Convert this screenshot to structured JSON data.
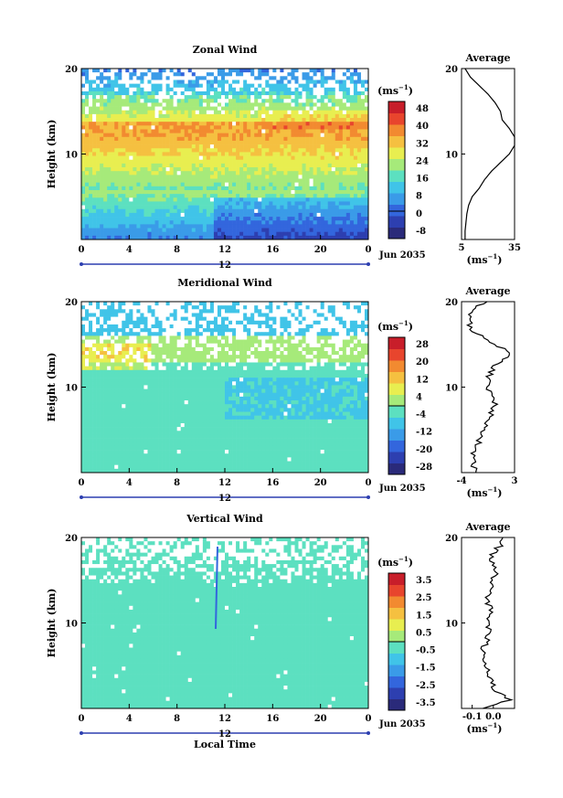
{
  "date_label": "Jun 2035",
  "x_label": "Local Time",
  "x_ticks": [
    "0",
    "4",
    "8",
    "12",
    "16",
    "20",
    "0"
  ],
  "y_ticks": [
    "20",
    "10"
  ],
  "unit": "(ms",
  "unit_exp": "−1",
  "avg_title": "Average",
  "colors": [
    "#2a2a7a",
    "#2d3fb0",
    "#3366dd",
    "#3a9be8",
    "#40c4e8",
    "#5ce0c0",
    "#a6ea7a",
    "#e8ee50",
    "#f5c040",
    "#f28a30",
    "#e8452d",
    "#c81e2a"
  ],
  "chart_data": [
    {
      "type": "heatmap",
      "title": "Zonal Wind",
      "xlabel": "",
      "ylabel": "Height (km)",
      "xlim": [
        0,
        24
      ],
      "ylim": [
        0,
        20
      ],
      "colorbar_ticks": [
        "48",
        "40",
        "32",
        "24",
        "16",
        "8",
        "0",
        "-8"
      ],
      "profile": {
        "title": "Average",
        "xticks": [
          "5",
          "35"
        ],
        "xlim": [
          5,
          35
        ],
        "heights": [
          0,
          1,
          2,
          3,
          4,
          5,
          6,
          7,
          8,
          9,
          10,
          11,
          12,
          13,
          14,
          15,
          16,
          17,
          18,
          19,
          20
        ],
        "values": [
          7,
          7,
          7.5,
          8,
          9,
          11,
          15,
          18,
          22,
          27,
          32,
          35,
          35,
          32,
          28,
          27,
          24,
          20,
          15,
          10,
          7
        ]
      }
    },
    {
      "type": "heatmap",
      "title": "Meridional Wind",
      "xlabel": "",
      "ylabel": "Height (km)",
      "xlim": [
        0,
        24
      ],
      "ylim": [
        0,
        20
      ],
      "colorbar_ticks": [
        "28",
        "20",
        "12",
        "4",
        "-4",
        "-12",
        "-20",
        "-28"
      ],
      "profile": {
        "title": "Average",
        "xticks": [
          "-4",
          "3"
        ],
        "xlim": [
          -4,
          3
        ],
        "heights": [
          0,
          1,
          2,
          3,
          4,
          5,
          6,
          7,
          8,
          9,
          10,
          11,
          12,
          13,
          14,
          15,
          16,
          17,
          18,
          19,
          20
        ],
        "values": [
          -2,
          -2.5,
          -2.5,
          -2,
          -1.5,
          -1,
          -0.5,
          0,
          0.5,
          0,
          -0.5,
          -0.5,
          0,
          1,
          2.5,
          0.5,
          -1.5,
          -3,
          -3,
          -2.5,
          -1
        ]
      }
    },
    {
      "type": "heatmap",
      "title": "Vertical Wind",
      "xlabel": "Local Time",
      "ylabel": "Height (km)",
      "xlim": [
        0,
        24
      ],
      "ylim": [
        0,
        20
      ],
      "colorbar_ticks": [
        "3.5",
        "2.5",
        "1.5",
        "0.5",
        "-0.5",
        "-1.5",
        "-2.5",
        "-3.5"
      ],
      "profile": {
        "title": "Average",
        "xticks": [
          "-0.1",
          "0.0"
        ],
        "xlim": [
          -0.15,
          0.1
        ],
        "heights": [
          0,
          1,
          2,
          3,
          4,
          5,
          6,
          7,
          8,
          9,
          10,
          11,
          12,
          13,
          14,
          15,
          16,
          17,
          18,
          19,
          20
        ],
        "values": [
          -0.05,
          0.08,
          0.01,
          -0.01,
          -0.02,
          -0.03,
          -0.04,
          -0.05,
          -0.03,
          -0.02,
          -0.03,
          -0.01,
          -0.02,
          -0.03,
          0.0,
          -0.01,
          0.02,
          0.0,
          -0.01,
          0.03,
          0.05
        ]
      }
    }
  ]
}
